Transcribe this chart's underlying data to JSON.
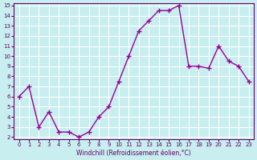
{
  "x": [
    0,
    1,
    2,
    3,
    4,
    5,
    6,
    7,
    8,
    9,
    10,
    11,
    12,
    13,
    14,
    15,
    16,
    17,
    18,
    19,
    20,
    21,
    22,
    23
  ],
  "y": [
    6.0,
    7.0,
    3.0,
    4.5,
    2.5,
    2.5,
    2.0,
    2.5,
    4.0,
    5.0,
    7.5,
    10.0,
    12.5,
    13.5,
    14.5,
    14.5,
    15.0,
    9.0,
    9.0,
    8.8,
    11.0,
    9.5,
    9.0,
    7.5
  ],
  "line_color": "#990099",
  "marker": "+",
  "marker_size": 4,
  "bg_color": "#c8eef0",
  "grid_color": "#ffffff",
  "xlabel": "Windchill (Refroidissement éolien,°C)",
  "xlabel_color": "#660066",
  "axis_label_color": "#660066",
  "tick_color": "#660066",
  "ylim": [
    2,
    15
  ],
  "xlim": [
    0,
    23
  ],
  "yticks": [
    2,
    3,
    4,
    5,
    6,
    7,
    8,
    9,
    10,
    11,
    12,
    13,
    14,
    15
  ],
  "xticks": [
    0,
    1,
    2,
    3,
    4,
    5,
    6,
    7,
    8,
    9,
    10,
    11,
    12,
    13,
    14,
    15,
    16,
    17,
    18,
    19,
    20,
    21,
    22,
    23
  ],
  "xtick_labels": [
    "0",
    "1",
    "2",
    "3",
    "4",
    "5",
    "6",
    "7",
    "8",
    "9",
    "10",
    "11",
    "12",
    "13",
    "14",
    "15",
    "16",
    "17",
    "18",
    "19",
    "20",
    "21",
    "22",
    "23"
  ],
  "spine_color": "#660066"
}
